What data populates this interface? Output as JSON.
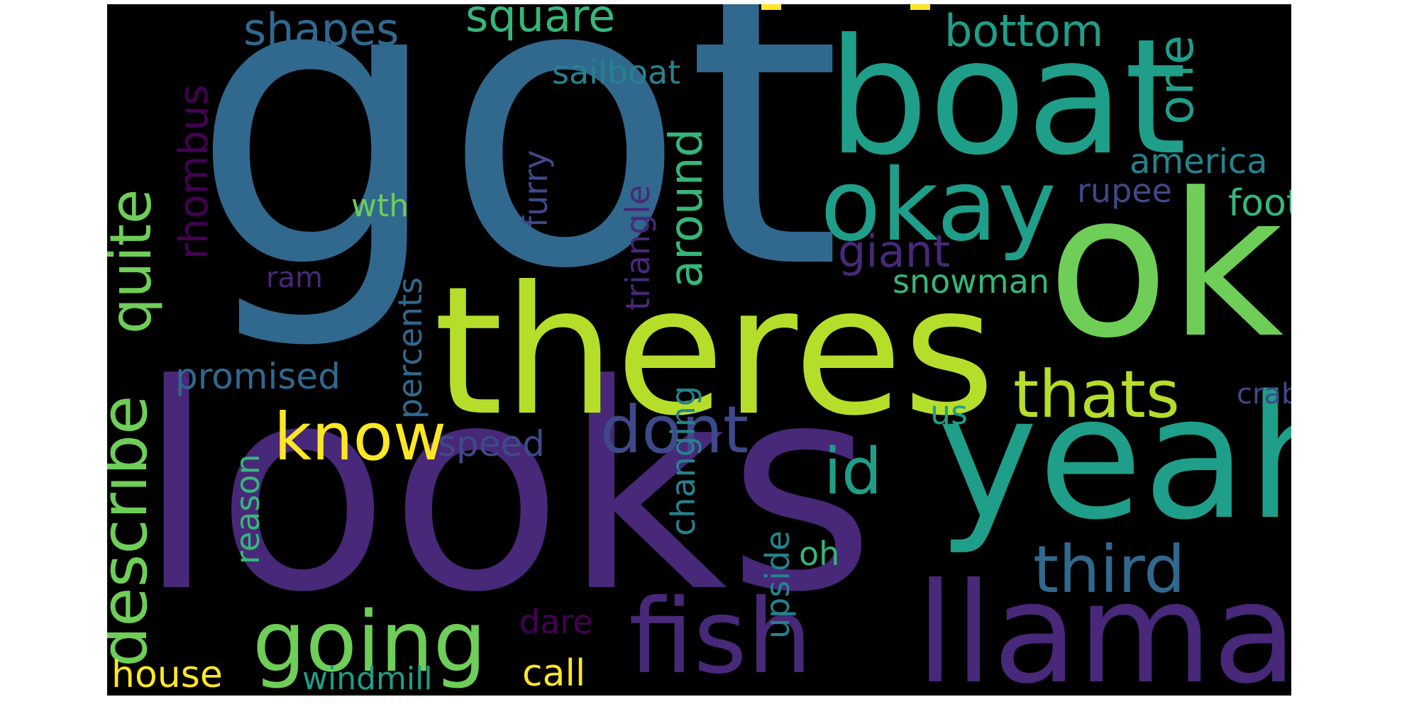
{
  "background": "#000000",
  "words": {
    "got": "got",
    "boat": "boat",
    "ok": "ok",
    "okay": "okay",
    "theres": "theres",
    "looks": "looks",
    "yeah": "yeah",
    "llama": "llama",
    "fish": "fish",
    "going": "going",
    "dont": "dont",
    "know": "know",
    "thats": "thats",
    "third": "third",
    "id": "id",
    "describe": "describe",
    "quite": "quite",
    "rhombus": "rhombus",
    "shapes": "shapes",
    "square": "square",
    "bottom": "bottom",
    "one": "one",
    "sailboat": "sailboat",
    "america": "america",
    "rupee": "rupee",
    "foot": "foot",
    "giant": "giant",
    "snowman": "snowman",
    "around": "around",
    "triangle": "triangle",
    "furry": "furry",
    "wth": "wth",
    "ram": "ram",
    "percents": "percents",
    "promised": "promised",
    "crab": "crab",
    "us": "us",
    "speed": "speed",
    "reason": "reason",
    "changing": "changing",
    "oh": "oh",
    "upside": "upside",
    "dare": "dare",
    "house": "house",
    "windmill": "windmill",
    "call": "call"
  },
  "colors": {
    "yellow": "#fde725",
    "lime": "#b5de2b",
    "green": "#6ece58",
    "seagreen": "#35b779",
    "teal": "#1f9e89",
    "tealblue": "#26828e",
    "blue": "#31688e",
    "indigo": "#3e4989",
    "purple": "#482878",
    "darkpurple": "#440154"
  }
}
